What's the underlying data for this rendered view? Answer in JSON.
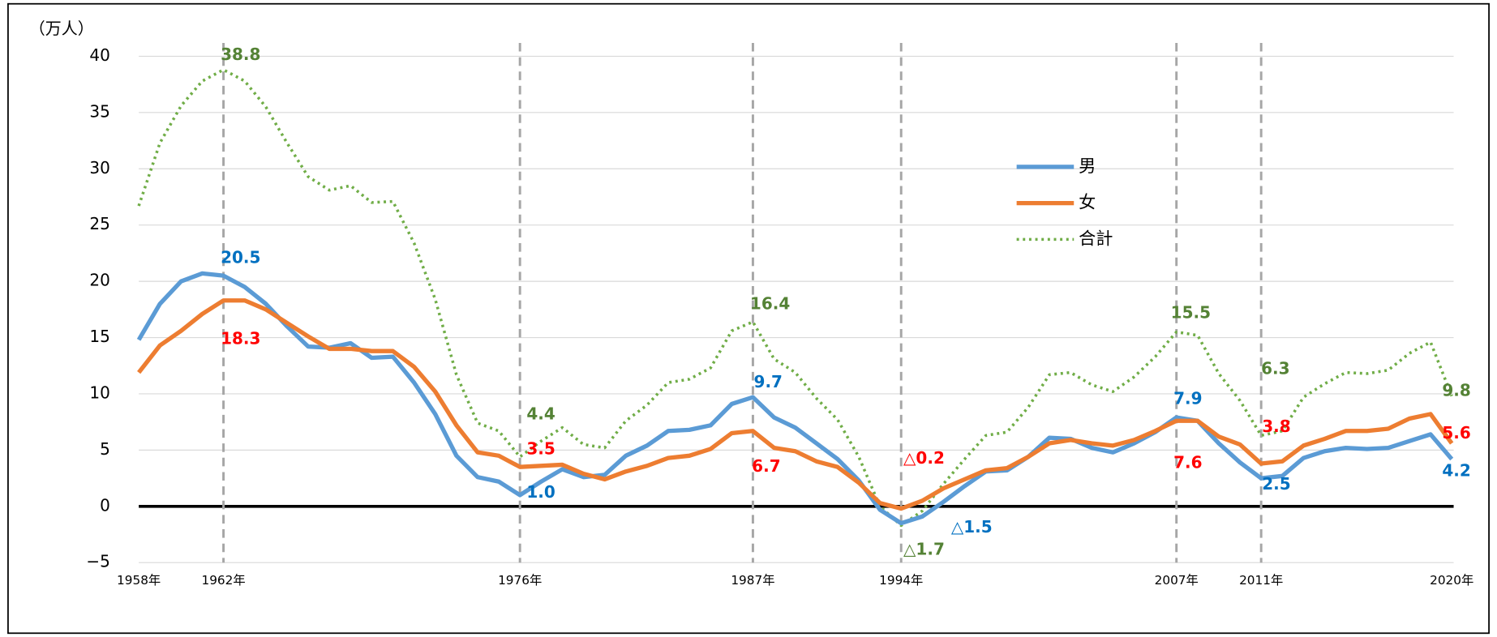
{
  "chart_data": {
    "type": "line",
    "y_axis_label": "（万人）",
    "x": [
      1958,
      1959,
      1960,
      1961,
      1962,
      1963,
      1964,
      1965,
      1966,
      1967,
      1968,
      1969,
      1970,
      1971,
      1972,
      1973,
      1974,
      1975,
      1976,
      1977,
      1978,
      1979,
      1980,
      1981,
      1982,
      1983,
      1984,
      1985,
      1986,
      1987,
      1988,
      1989,
      1990,
      1991,
      1992,
      1993,
      1994,
      1995,
      1996,
      1997,
      1998,
      1999,
      2000,
      2001,
      2002,
      2003,
      2004,
      2005,
      2006,
      2007,
      2008,
      2009,
      2010,
      2011,
      2012,
      2013,
      2014,
      2015,
      2016,
      2017,
      2018,
      2019,
      2020
    ],
    "xlim": [
      1958,
      2020
    ],
    "xticks": [
      {
        "value": 1958,
        "label": "1958年"
      },
      {
        "value": 1962,
        "label": "1962年"
      },
      {
        "value": 1976,
        "label": "1976年"
      },
      {
        "value": 1987,
        "label": "1987年"
      },
      {
        "value": 1994,
        "label": "1994年"
      },
      {
        "value": 2007,
        "label": "2007年"
      },
      {
        "value": 2011,
        "label": "2011年"
      },
      {
        "value": 2020,
        "label": "2020年"
      }
    ],
    "ylim": [
      -5,
      40
    ],
    "yticks": [
      {
        "value": -5,
        "label": "−5"
      },
      0,
      5,
      10,
      15,
      20,
      25,
      30,
      35,
      40
    ],
    "grid": true,
    "series": [
      {
        "name": "男",
        "color": "#5b9bd5",
        "label_color": "#0070c0",
        "style": "solid",
        "values": [
          14.8,
          18.0,
          20.0,
          20.7,
          20.5,
          19.5,
          18.0,
          16.0,
          14.2,
          14.1,
          14.5,
          13.2,
          13.3,
          11.0,
          8.2,
          4.5,
          2.6,
          2.2,
          1.0,
          2.2,
          3.3,
          2.6,
          2.8,
          4.5,
          5.4,
          6.7,
          6.8,
          7.2,
          9.1,
          9.7,
          7.9,
          7.0,
          5.6,
          4.2,
          2.3,
          -0.3,
          -1.5,
          -0.9,
          0.4,
          1.8,
          3.1,
          3.2,
          4.4,
          6.1,
          6.0,
          5.2,
          4.8,
          5.6,
          6.6,
          7.9,
          7.6,
          5.6,
          3.9,
          2.5,
          2.7,
          4.3,
          4.9,
          5.2,
          5.1,
          5.2,
          5.8,
          6.4,
          4.2
        ],
        "value_labels": [
          null,
          null,
          null,
          null,
          "20.5",
          null,
          null,
          null,
          null,
          null,
          null,
          null,
          null,
          null,
          null,
          null,
          null,
          null,
          "1.0",
          null,
          null,
          null,
          null,
          null,
          null,
          null,
          null,
          null,
          null,
          "9.7",
          null,
          null,
          null,
          null,
          null,
          null,
          "△1.5",
          null,
          null,
          null,
          null,
          null,
          null,
          null,
          null,
          null,
          null,
          null,
          null,
          "7.9",
          null,
          null,
          null,
          "2.5",
          null,
          null,
          null,
          null,
          null,
          null,
          null,
          null,
          "4.2"
        ]
      },
      {
        "name": "女",
        "color": "#ed7d31",
        "label_color": "#ff0000",
        "style": "solid",
        "values": [
          11.9,
          14.3,
          15.6,
          17.1,
          18.3,
          18.3,
          17.5,
          16.3,
          15.1,
          14.0,
          14.0,
          13.8,
          13.8,
          12.4,
          10.2,
          7.2,
          4.8,
          4.5,
          3.5,
          3.6,
          3.7,
          2.9,
          2.4,
          3.1,
          3.6,
          4.3,
          4.5,
          5.1,
          6.5,
          6.7,
          5.2,
          4.9,
          4.0,
          3.5,
          2.1,
          0.3,
          -0.2,
          0.5,
          1.6,
          2.4,
          3.2,
          3.4,
          4.4,
          5.6,
          5.9,
          5.6,
          5.4,
          5.9,
          6.7,
          7.6,
          7.6,
          6.2,
          5.5,
          3.8,
          4.0,
          5.4,
          6.0,
          6.7,
          6.7,
          6.9,
          7.8,
          8.2,
          5.6
        ],
        "value_labels": [
          null,
          null,
          null,
          null,
          "18.3",
          null,
          null,
          null,
          null,
          null,
          null,
          null,
          null,
          null,
          null,
          null,
          null,
          null,
          "3.5",
          null,
          null,
          null,
          null,
          null,
          null,
          null,
          null,
          null,
          null,
          "6.7",
          null,
          null,
          null,
          null,
          null,
          null,
          "△0.2",
          null,
          null,
          null,
          null,
          null,
          null,
          null,
          null,
          null,
          null,
          null,
          null,
          "7.6",
          null,
          null,
          null,
          "3.8",
          null,
          null,
          null,
          null,
          null,
          null,
          null,
          null,
          "5.6"
        ]
      },
      {
        "name": "合計",
        "color": "#70ad47",
        "label_color": "#548235",
        "style": "dotted",
        "values": [
          26.7,
          32.3,
          35.6,
          37.8,
          38.8,
          37.8,
          35.5,
          32.3,
          29.3,
          28.1,
          28.5,
          27.0,
          27.1,
          23.4,
          18.4,
          11.7,
          7.4,
          6.7,
          4.4,
          5.8,
          7.0,
          5.5,
          5.2,
          7.6,
          9.0,
          11.0,
          11.3,
          12.3,
          15.6,
          16.4,
          13.1,
          11.9,
          9.6,
          7.7,
          4.4,
          0.0,
          -1.7,
          -0.4,
          2.0,
          4.2,
          6.3,
          6.6,
          8.8,
          11.7,
          11.9,
          10.8,
          10.2,
          11.5,
          13.3,
          15.5,
          15.2,
          11.8,
          9.4,
          6.3,
          6.7,
          9.7,
          10.9,
          11.9,
          11.8,
          12.1,
          13.6,
          14.6,
          9.8
        ],
        "value_labels": [
          null,
          null,
          null,
          null,
          "38.8",
          null,
          null,
          null,
          null,
          null,
          null,
          null,
          null,
          null,
          null,
          null,
          null,
          null,
          "4.4",
          null,
          null,
          null,
          null,
          null,
          null,
          null,
          null,
          null,
          null,
          "16.4",
          null,
          null,
          null,
          null,
          null,
          null,
          "△1.7",
          null,
          null,
          null,
          null,
          null,
          null,
          null,
          null,
          null,
          null,
          null,
          null,
          "15.5",
          null,
          null,
          null,
          "6.3",
          null,
          null,
          null,
          null,
          null,
          null,
          null,
          null,
          "9.8"
        ]
      }
    ]
  }
}
